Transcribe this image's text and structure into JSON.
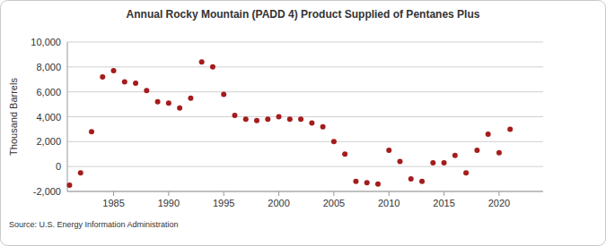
{
  "chart_data": {
    "type": "scatter",
    "title": "Annual Rocky Mountain (PADD 4) Product Supplied of Pentanes Plus",
    "y_label": "Thousand Barrels",
    "source": "Source: U.S. Energy Information Administration",
    "x": [
      1981,
      1982,
      1983,
      1984,
      1985,
      1986,
      1987,
      1988,
      1989,
      1990,
      1991,
      1992,
      1993,
      1994,
      1995,
      1996,
      1997,
      1998,
      1999,
      2000,
      2001,
      2002,
      2003,
      2004,
      2005,
      2006,
      2007,
      2008,
      2009,
      2010,
      2011,
      2012,
      2013,
      2014,
      2015,
      2016,
      2017,
      2018,
      2019,
      2020,
      2021
    ],
    "values": [
      -1500,
      -500,
      2800,
      7200,
      7700,
      6800,
      6700,
      6100,
      5200,
      5100,
      4700,
      5500,
      8400,
      8000,
      5800,
      4100,
      3800,
      3700,
      3800,
      4000,
      3800,
      3800,
      3500,
      3200,
      2000,
      1000,
      -1200,
      -1300,
      -1400,
      1300,
      400,
      -1000,
      -1200,
      300,
      300,
      900,
      -500,
      1300,
      2600,
      1100,
      3000
    ],
    "color": "#a51c1c",
    "marker": "circle",
    "xlim": [
      1980.8,
      2024
    ],
    "xticks": [
      1985,
      1990,
      1995,
      2000,
      2005,
      2010,
      2015,
      2020
    ],
    "ylim": [
      -2000,
      10000
    ],
    "yticks": [
      {
        "value": -2000,
        "label": "-2,000"
      },
      0,
      {
        "value": 2000,
        "label": "2,000"
      },
      {
        "value": 4000,
        "label": "4,000"
      },
      {
        "value": 6000,
        "label": "6,000"
      },
      {
        "value": 8000,
        "label": "8,000"
      },
      {
        "value": 10000,
        "label": "10,000"
      }
    ],
    "grid": true
  }
}
